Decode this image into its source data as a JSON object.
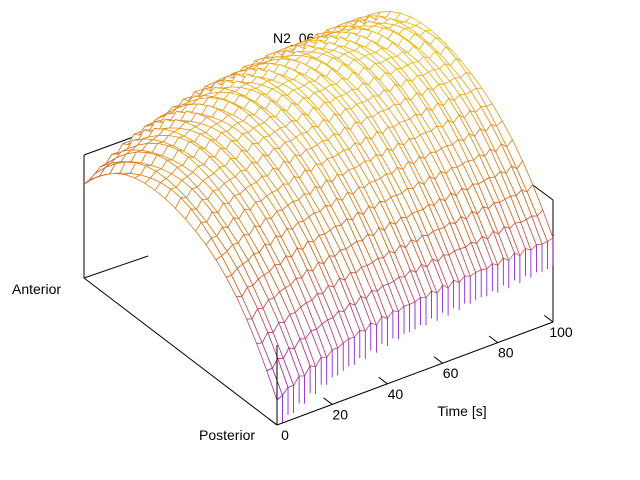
{
  "chart_data": {
    "type": "surface",
    "title": "N2_061123.ost",
    "xlabel": "Time [s]",
    "ylabel_near": "Posterior",
    "ylabel_far": "Anterior",
    "xlim": [
      0,
      100
    ],
    "x_ticks": [
      "0",
      "20",
      "40",
      "60",
      "80",
      "100"
    ],
    "x_tick_values": [
      0,
      20,
      40,
      60,
      80,
      100
    ],
    "y_positions": 20,
    "x_samples": 51,
    "z_range": [
      0,
      1
    ],
    "profile": "arch",
    "z_near_start": 0.1,
    "z_near_end": 0.38,
    "z_far_start": 0.4,
    "z_far_end": 0.7,
    "z_peak_start": 0.6,
    "z_peak_end": 0.84,
    "colormap": [
      "#7a00d8",
      "#b23a8c",
      "#d2691e",
      "#e8a020",
      "#f0e010"
    ],
    "grid": false,
    "legend": "none"
  }
}
